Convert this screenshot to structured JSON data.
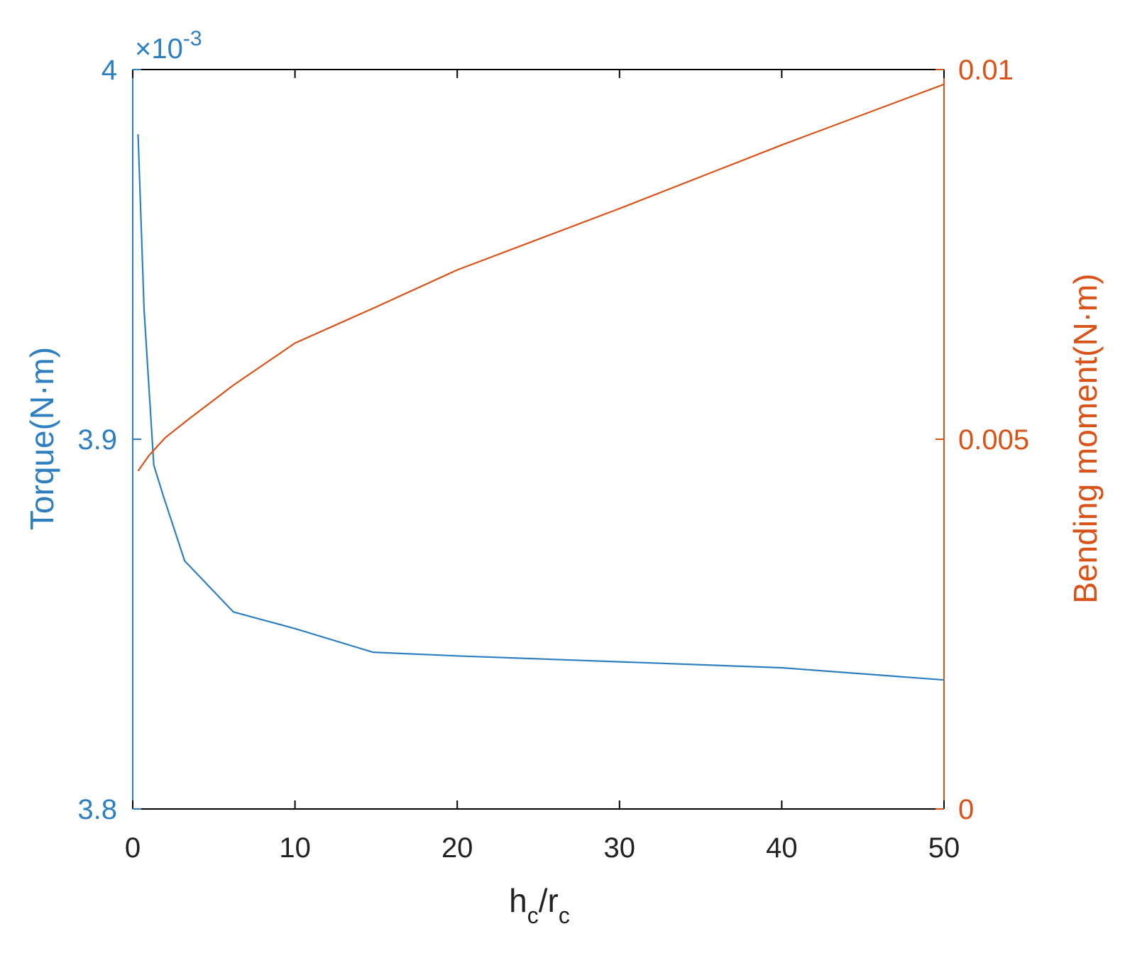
{
  "chart_data": {
    "type": "line",
    "xlabel_main": "h",
    "xlabel_sub1": "c",
    "xlabel_mid": "/r",
    "xlabel_sub2": "c",
    "ylabel_left": "Torque(N·m)",
    "ylabel_right": "Bending moment(N·m)",
    "exponent_label": "×10",
    "exponent_power": "-3",
    "xlim": [
      0,
      50
    ],
    "ylim_left": [
      3.8,
      4.0
    ],
    "ylim_right": [
      0,
      0.01
    ],
    "x_ticks": [
      "0",
      "10",
      "20",
      "30",
      "40",
      "50"
    ],
    "y_left_ticks": [
      "3.8",
      "3.9",
      "4"
    ],
    "y_right_ticks": [
      "0",
      "0.005",
      "0.01"
    ],
    "colors": {
      "left": "#2e7fc0",
      "right": "#d95319",
      "axis": "#000000"
    },
    "series": [
      {
        "axis": "left",
        "color": "#2e7fc0",
        "x": [
          0.33,
          0.7,
          1.3,
          1.9,
          3.2,
          6.2,
          10,
          14.8,
          20,
          30,
          40,
          50
        ],
        "y": [
          3.9825,
          3.935,
          3.893,
          3.8845,
          3.8671,
          3.8533,
          3.8488,
          3.8424,
          3.8414,
          3.8398,
          3.8382,
          3.8349
        ]
      },
      {
        "axis": "right",
        "color": "#d95319",
        "x": [
          0.33,
          1.0,
          2.0,
          3.5,
          6.2,
          10,
          14.8,
          20,
          30,
          40,
          50
        ],
        "y": [
          0.00457,
          0.00478,
          0.00502,
          0.00528,
          0.00573,
          0.0063,
          0.00677,
          0.00729,
          0.00812,
          0.00898,
          0.0098
        ]
      }
    ]
  }
}
